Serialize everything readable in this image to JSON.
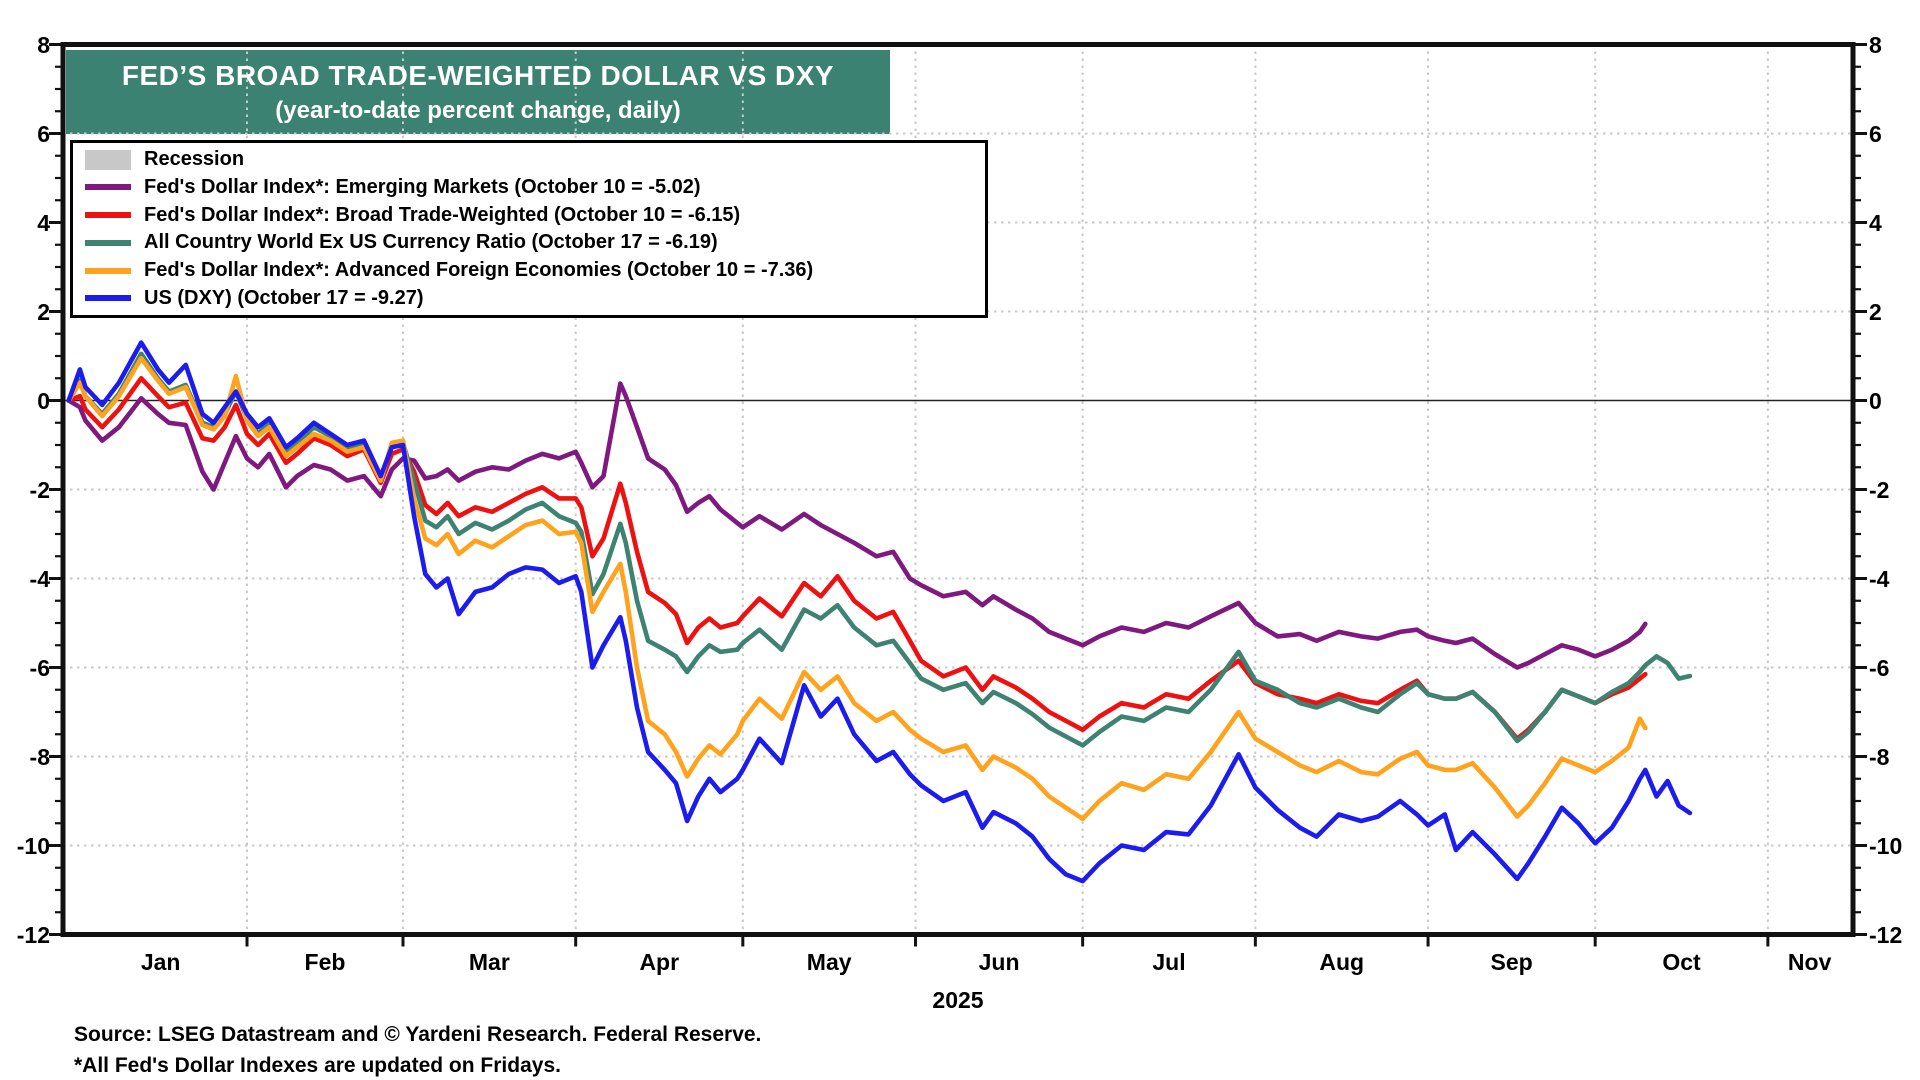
{
  "chart_data": {
    "type": "line",
    "title": "FED’S BROAD TRADE-WEIGHTED DOLLAR VS DXY",
    "subtitle": "(year-to-date percent change, daily)",
    "title_bg_color": "#3B8273",
    "grid": true,
    "legend_position": "top-left",
    "y_axis": {
      "min": -12,
      "max": 8,
      "minor_step": 0.5,
      "major_tick_labels": [
        8,
        6,
        4,
        2,
        0,
        -2,
        -4,
        -6,
        -8,
        -10,
        -12
      ],
      "grid_values": [
        6,
        4,
        2,
        -2,
        -4,
        -6,
        -8,
        -10
      ],
      "zero_line": true
    },
    "x_axis": {
      "year_label": "2025",
      "month_labels": [
        "Jan",
        "Feb",
        "Mar",
        "Apr",
        "May",
        "Jun",
        "Jul",
        "Aug",
        "Sep",
        "Oct",
        "Nov"
      ],
      "month_start_days": [
        0,
        31,
        59,
        90,
        120,
        151,
        181,
        212,
        243,
        273,
        304
      ],
      "domain_end_day": 319
    },
    "legend": [
      {
        "label": "Recession",
        "swatch": "patch",
        "color": "#C8C8C8"
      },
      {
        "label": "Fed's Dollar Index*: Emerging Markets (October 10 = -5.02)",
        "swatch": "line",
        "color": "#7F187F"
      },
      {
        "label": "Fed's Dollar Index*: Broad Trade-Weighted (October 10 = -6.15)",
        "swatch": "line",
        "color": "#EE1111"
      },
      {
        "label": "All Country World Ex US Currency Ratio (October 17 = -6.19)",
        "swatch": "line",
        "color": "#3E8272"
      },
      {
        "label": "Fed's Dollar Index*: Advanced Foreign Economies (October 10 = -7.36)",
        "swatch": "line",
        "color": "#FFA31E"
      },
      {
        "label": "US (DXY) (October 17 = -9.27)",
        "swatch": "line",
        "color": "#1C1CEF"
      }
    ],
    "series": [
      {
        "name": "Fed's Dollar Index: Emerging Markets",
        "color": "#7F187F",
        "last_date": "October 10",
        "last_value": -5.02,
        "days": [
          -1,
          1,
          2,
          5,
          8,
          12,
          15,
          17,
          20,
          23,
          25,
          27,
          29,
          31,
          33,
          35,
          38,
          40,
          43,
          46,
          49,
          52,
          55,
          57,
          59,
          61,
          63,
          65,
          67,
          69,
          72,
          75,
          78,
          81,
          84,
          87,
          90,
          91,
          93,
          95,
          98,
          99,
          101,
          103,
          106,
          108,
          110,
          112,
          114,
          116,
          119,
          120,
          123,
          127,
          131,
          134,
          137,
          140,
          144,
          147,
          150,
          152,
          156,
          160,
          163,
          165,
          169,
          172,
          175,
          178,
          181,
          184,
          188,
          192,
          196,
          200,
          204,
          209,
          212,
          216,
          220,
          223,
          227,
          231,
          234,
          238,
          241,
          243,
          246,
          248,
          251,
          255,
          259,
          261,
          264,
          267,
          270,
          273,
          276,
          279,
          281,
          282
        ],
        "values": [
          0,
          -0.15,
          -0.45,
          -0.9,
          -0.6,
          0.05,
          -0.3,
          -0.5,
          -0.55,
          -1.6,
          -2.0,
          -1.4,
          -0.8,
          -1.3,
          -1.5,
          -1.2,
          -1.95,
          -1.7,
          -1.45,
          -1.55,
          -1.8,
          -1.7,
          -2.15,
          -1.55,
          -1.3,
          -1.35,
          -1.75,
          -1.7,
          -1.55,
          -1.8,
          -1.6,
          -1.5,
          -1.55,
          -1.35,
          -1.2,
          -1.3,
          -1.15,
          -1.4,
          -1.95,
          -1.7,
          0.38,
          0.1,
          -0.6,
          -1.3,
          -1.55,
          -1.9,
          -2.5,
          -2.3,
          -2.15,
          -2.45,
          -2.75,
          -2.85,
          -2.6,
          -2.9,
          -2.55,
          -2.8,
          -3.0,
          -3.2,
          -3.5,
          -3.4,
          -4.0,
          -4.15,
          -4.4,
          -4.3,
          -4.6,
          -4.4,
          -4.7,
          -4.9,
          -5.2,
          -5.35,
          -5.5,
          -5.3,
          -5.1,
          -5.2,
          -5.0,
          -5.1,
          -4.85,
          -4.55,
          -5.0,
          -5.3,
          -5.25,
          -5.4,
          -5.2,
          -5.3,
          -5.35,
          -5.2,
          -5.15,
          -5.3,
          -5.4,
          -5.45,
          -5.35,
          -5.7,
          -6.0,
          -5.9,
          -5.7,
          -5.5,
          -5.6,
          -5.75,
          -5.6,
          -5.4,
          -5.2,
          -5.02
        ]
      },
      {
        "name": "Fed's Dollar Index: Broad Trade-Weighted",
        "color": "#EE1111",
        "last_date": "October 10",
        "last_value": -6.15,
        "days": [
          -1,
          1,
          2,
          5,
          8,
          12,
          15,
          17,
          20,
          23,
          25,
          27,
          29,
          31,
          33,
          35,
          38,
          40,
          43,
          46,
          49,
          52,
          55,
          57,
          59,
          61,
          63,
          65,
          67,
          69,
          72,
          75,
          78,
          81,
          84,
          87,
          90,
          91,
          93,
          95,
          98,
          99,
          101,
          103,
          106,
          108,
          110,
          112,
          114,
          116,
          119,
          120,
          123,
          127,
          131,
          134,
          137,
          140,
          144,
          147,
          150,
          152,
          156,
          160,
          163,
          165,
          169,
          172,
          175,
          178,
          181,
          184,
          188,
          192,
          196,
          200,
          204,
          209,
          212,
          216,
          220,
          223,
          227,
          231,
          234,
          238,
          241,
          243,
          246,
          248,
          251,
          255,
          259,
          261,
          264,
          267,
          270,
          273,
          276,
          279,
          281,
          282
        ],
        "values": [
          0,
          0.1,
          -0.2,
          -0.6,
          -0.2,
          0.5,
          0.1,
          -0.15,
          -0.05,
          -0.85,
          -0.9,
          -0.6,
          -0.1,
          -0.75,
          -1.0,
          -0.75,
          -1.4,
          -1.2,
          -0.85,
          -1.0,
          -1.25,
          -1.1,
          -1.85,
          -1.2,
          -1.1,
          -1.6,
          -2.35,
          -2.55,
          -2.3,
          -2.6,
          -2.4,
          -2.5,
          -2.3,
          -2.1,
          -1.95,
          -2.2,
          -2.2,
          -2.4,
          -3.5,
          -3.1,
          -1.87,
          -2.3,
          -3.4,
          -4.3,
          -4.55,
          -4.8,
          -5.45,
          -5.1,
          -4.9,
          -5.1,
          -5.0,
          -4.85,
          -4.45,
          -4.85,
          -4.1,
          -4.4,
          -3.95,
          -4.5,
          -4.9,
          -4.75,
          -5.4,
          -5.85,
          -6.2,
          -6.0,
          -6.5,
          -6.2,
          -6.45,
          -6.7,
          -7.0,
          -7.2,
          -7.4,
          -7.1,
          -6.8,
          -6.9,
          -6.6,
          -6.7,
          -6.3,
          -5.85,
          -6.35,
          -6.6,
          -6.7,
          -6.8,
          -6.6,
          -6.75,
          -6.8,
          -6.5,
          -6.3,
          -6.6,
          -6.7,
          -6.7,
          -6.55,
          -7.0,
          -7.6,
          -7.4,
          -7.0,
          -6.5,
          -6.65,
          -6.8,
          -6.6,
          -6.45,
          -6.25,
          -6.15
        ]
      },
      {
        "name": "All Country World Ex US Currency Ratio",
        "color": "#3E8272",
        "last_date": "October 17",
        "last_value": -6.19,
        "days": [
          -1,
          1,
          2,
          5,
          8,
          12,
          15,
          17,
          20,
          23,
          25,
          27,
          29,
          31,
          33,
          35,
          38,
          40,
          43,
          46,
          49,
          52,
          55,
          57,
          59,
          61,
          63,
          65,
          67,
          69,
          72,
          75,
          78,
          81,
          84,
          87,
          90,
          91,
          93,
          95,
          98,
          99,
          101,
          103,
          106,
          108,
          110,
          112,
          114,
          116,
          119,
          120,
          123,
          127,
          131,
          134,
          137,
          140,
          144,
          147,
          150,
          152,
          156,
          160,
          163,
          165,
          169,
          172,
          175,
          178,
          181,
          184,
          188,
          192,
          196,
          200,
          204,
          209,
          212,
          216,
          220,
          223,
          227,
          231,
          234,
          238,
          241,
          243,
          246,
          248,
          251,
          255,
          259,
          261,
          264,
          267,
          270,
          273,
          276,
          279,
          281,
          282,
          284,
          286,
          288,
          290
        ],
        "values": [
          0,
          0.45,
          0.1,
          -0.3,
          0.15,
          1.05,
          0.5,
          0.2,
          0.35,
          -0.5,
          -0.6,
          -0.3,
          0.2,
          -0.4,
          -0.75,
          -0.5,
          -1.15,
          -0.95,
          -0.6,
          -0.8,
          -1.1,
          -1.0,
          -1.75,
          -1.0,
          -0.95,
          -1.8,
          -2.7,
          -2.85,
          -2.6,
          -3.0,
          -2.75,
          -2.9,
          -2.7,
          -2.45,
          -2.3,
          -2.6,
          -2.75,
          -2.95,
          -4.35,
          -3.9,
          -2.77,
          -3.2,
          -4.5,
          -5.4,
          -5.6,
          -5.75,
          -6.1,
          -5.75,
          -5.5,
          -5.65,
          -5.6,
          -5.45,
          -5.15,
          -5.6,
          -4.7,
          -4.9,
          -4.6,
          -5.1,
          -5.5,
          -5.4,
          -5.9,
          -6.25,
          -6.5,
          -6.35,
          -6.8,
          -6.55,
          -6.8,
          -7.05,
          -7.35,
          -7.55,
          -7.75,
          -7.45,
          -7.1,
          -7.2,
          -6.9,
          -7.0,
          -6.5,
          -5.65,
          -6.3,
          -6.5,
          -6.8,
          -6.9,
          -6.7,
          -6.9,
          -7.0,
          -6.6,
          -6.35,
          -6.6,
          -6.7,
          -6.7,
          -6.55,
          -7.0,
          -7.65,
          -7.45,
          -7.0,
          -6.5,
          -6.65,
          -6.8,
          -6.55,
          -6.35,
          -6.1,
          -5.95,
          -5.75,
          -5.9,
          -6.25,
          -6.19
        ]
      },
      {
        "name": "Fed's Dollar Index: Advanced Foreign Economies",
        "color": "#FFA31E",
        "last_date": "October 10",
        "last_value": -7.36,
        "days": [
          -1,
          1,
          2,
          5,
          8,
          12,
          15,
          17,
          20,
          23,
          25,
          27,
          29,
          31,
          33,
          35,
          38,
          40,
          43,
          46,
          49,
          52,
          55,
          57,
          59,
          61,
          63,
          65,
          67,
          69,
          72,
          75,
          78,
          81,
          84,
          87,
          90,
          91,
          93,
          95,
          98,
          99,
          101,
          103,
          106,
          108,
          110,
          112,
          114,
          116,
          119,
          120,
          123,
          127,
          131,
          134,
          137,
          140,
          144,
          147,
          150,
          152,
          156,
          160,
          163,
          165,
          169,
          172,
          175,
          178,
          181,
          184,
          188,
          192,
          196,
          200,
          204,
          209,
          212,
          216,
          220,
          223,
          227,
          231,
          234,
          238,
          241,
          243,
          246,
          248,
          251,
          255,
          259,
          261,
          264,
          267,
          270,
          273,
          276,
          279,
          281,
          282
        ],
        "values": [
          0,
          0.4,
          0.1,
          -0.35,
          0.1,
          0.95,
          0.45,
          0.15,
          0.3,
          -0.55,
          -0.65,
          -0.35,
          0.55,
          -0.45,
          -0.8,
          -0.6,
          -1.25,
          -1.05,
          -0.75,
          -0.9,
          -1.15,
          -1.05,
          -1.8,
          -0.95,
          -0.9,
          -2.2,
          -3.1,
          -3.25,
          -3.0,
          -3.45,
          -3.15,
          -3.3,
          -3.05,
          -2.8,
          -2.7,
          -3.0,
          -2.95,
          -3.2,
          -4.75,
          -4.3,
          -3.67,
          -4.3,
          -6.0,
          -7.2,
          -7.5,
          -7.9,
          -8.45,
          -8.05,
          -7.75,
          -7.95,
          -7.5,
          -7.2,
          -6.7,
          -7.15,
          -6.1,
          -6.5,
          -6.2,
          -6.8,
          -7.2,
          -7.0,
          -7.4,
          -7.6,
          -7.9,
          -7.75,
          -8.3,
          -8.0,
          -8.25,
          -8.5,
          -8.9,
          -9.15,
          -9.4,
          -9.0,
          -8.6,
          -8.75,
          -8.4,
          -8.5,
          -7.9,
          -7.0,
          -7.6,
          -7.9,
          -8.2,
          -8.35,
          -8.1,
          -8.35,
          -8.4,
          -8.05,
          -7.9,
          -8.2,
          -8.3,
          -8.3,
          -8.15,
          -8.7,
          -9.35,
          -9.1,
          -8.6,
          -8.05,
          -8.2,
          -8.35,
          -8.1,
          -7.8,
          -7.15,
          -7.36
        ]
      },
      {
        "name": "US (DXY)",
        "color": "#1C1CEF",
        "last_date": "October 17",
        "last_value": -9.27,
        "days": [
          -1,
          1,
          2,
          5,
          8,
          12,
          15,
          17,
          20,
          23,
          25,
          27,
          29,
          31,
          33,
          35,
          38,
          40,
          43,
          46,
          49,
          52,
          55,
          57,
          59,
          61,
          63,
          65,
          67,
          69,
          72,
          75,
          78,
          81,
          84,
          87,
          90,
          91,
          93,
          95,
          98,
          99,
          101,
          103,
          106,
          108,
          110,
          112,
          114,
          116,
          119,
          120,
          123,
          127,
          131,
          134,
          137,
          140,
          144,
          147,
          150,
          152,
          156,
          160,
          163,
          165,
          169,
          172,
          175,
          178,
          181,
          184,
          188,
          192,
          196,
          200,
          204,
          209,
          212,
          216,
          220,
          223,
          227,
          231,
          234,
          238,
          241,
          243,
          246,
          248,
          251,
          255,
          259,
          261,
          264,
          267,
          270,
          273,
          276,
          279,
          281,
          282,
          284,
          286,
          288,
          290
        ],
        "values": [
          0,
          0.7,
          0.3,
          -0.1,
          0.4,
          1.3,
          0.7,
          0.4,
          0.8,
          -0.3,
          -0.5,
          -0.15,
          0.2,
          -0.3,
          -0.6,
          -0.4,
          -1.05,
          -0.85,
          -0.5,
          -0.75,
          -1.0,
          -0.9,
          -1.7,
          -1.05,
          -1.0,
          -2.6,
          -3.9,
          -4.2,
          -4.0,
          -4.8,
          -4.3,
          -4.2,
          -3.9,
          -3.75,
          -3.8,
          -4.1,
          -3.95,
          -4.3,
          -6.0,
          -5.5,
          -4.87,
          -5.4,
          -6.9,
          -7.9,
          -8.3,
          -8.6,
          -9.45,
          -8.9,
          -8.5,
          -8.8,
          -8.5,
          -8.3,
          -7.6,
          -8.15,
          -6.4,
          -7.1,
          -6.7,
          -7.5,
          -8.1,
          -7.9,
          -8.4,
          -8.65,
          -9.0,
          -8.8,
          -9.6,
          -9.25,
          -9.5,
          -9.8,
          -10.3,
          -10.65,
          -10.8,
          -10.4,
          -10.0,
          -10.1,
          -9.7,
          -9.75,
          -9.1,
          -7.95,
          -8.7,
          -9.2,
          -9.6,
          -9.8,
          -9.3,
          -9.45,
          -9.35,
          -9.0,
          -9.3,
          -9.55,
          -9.3,
          -10.1,
          -9.7,
          -10.2,
          -10.75,
          -10.4,
          -9.8,
          -9.15,
          -9.5,
          -9.95,
          -9.6,
          -9.0,
          -8.5,
          -8.3,
          -8.9,
          -8.55,
          -9.1,
          -9.27
        ]
      }
    ]
  },
  "footer": {
    "source": "Source: LSEG Datastream and © Yardeni Research. Federal Reserve.",
    "footnote": "*All Fed's Dollar Indexes are updated on Fridays."
  }
}
